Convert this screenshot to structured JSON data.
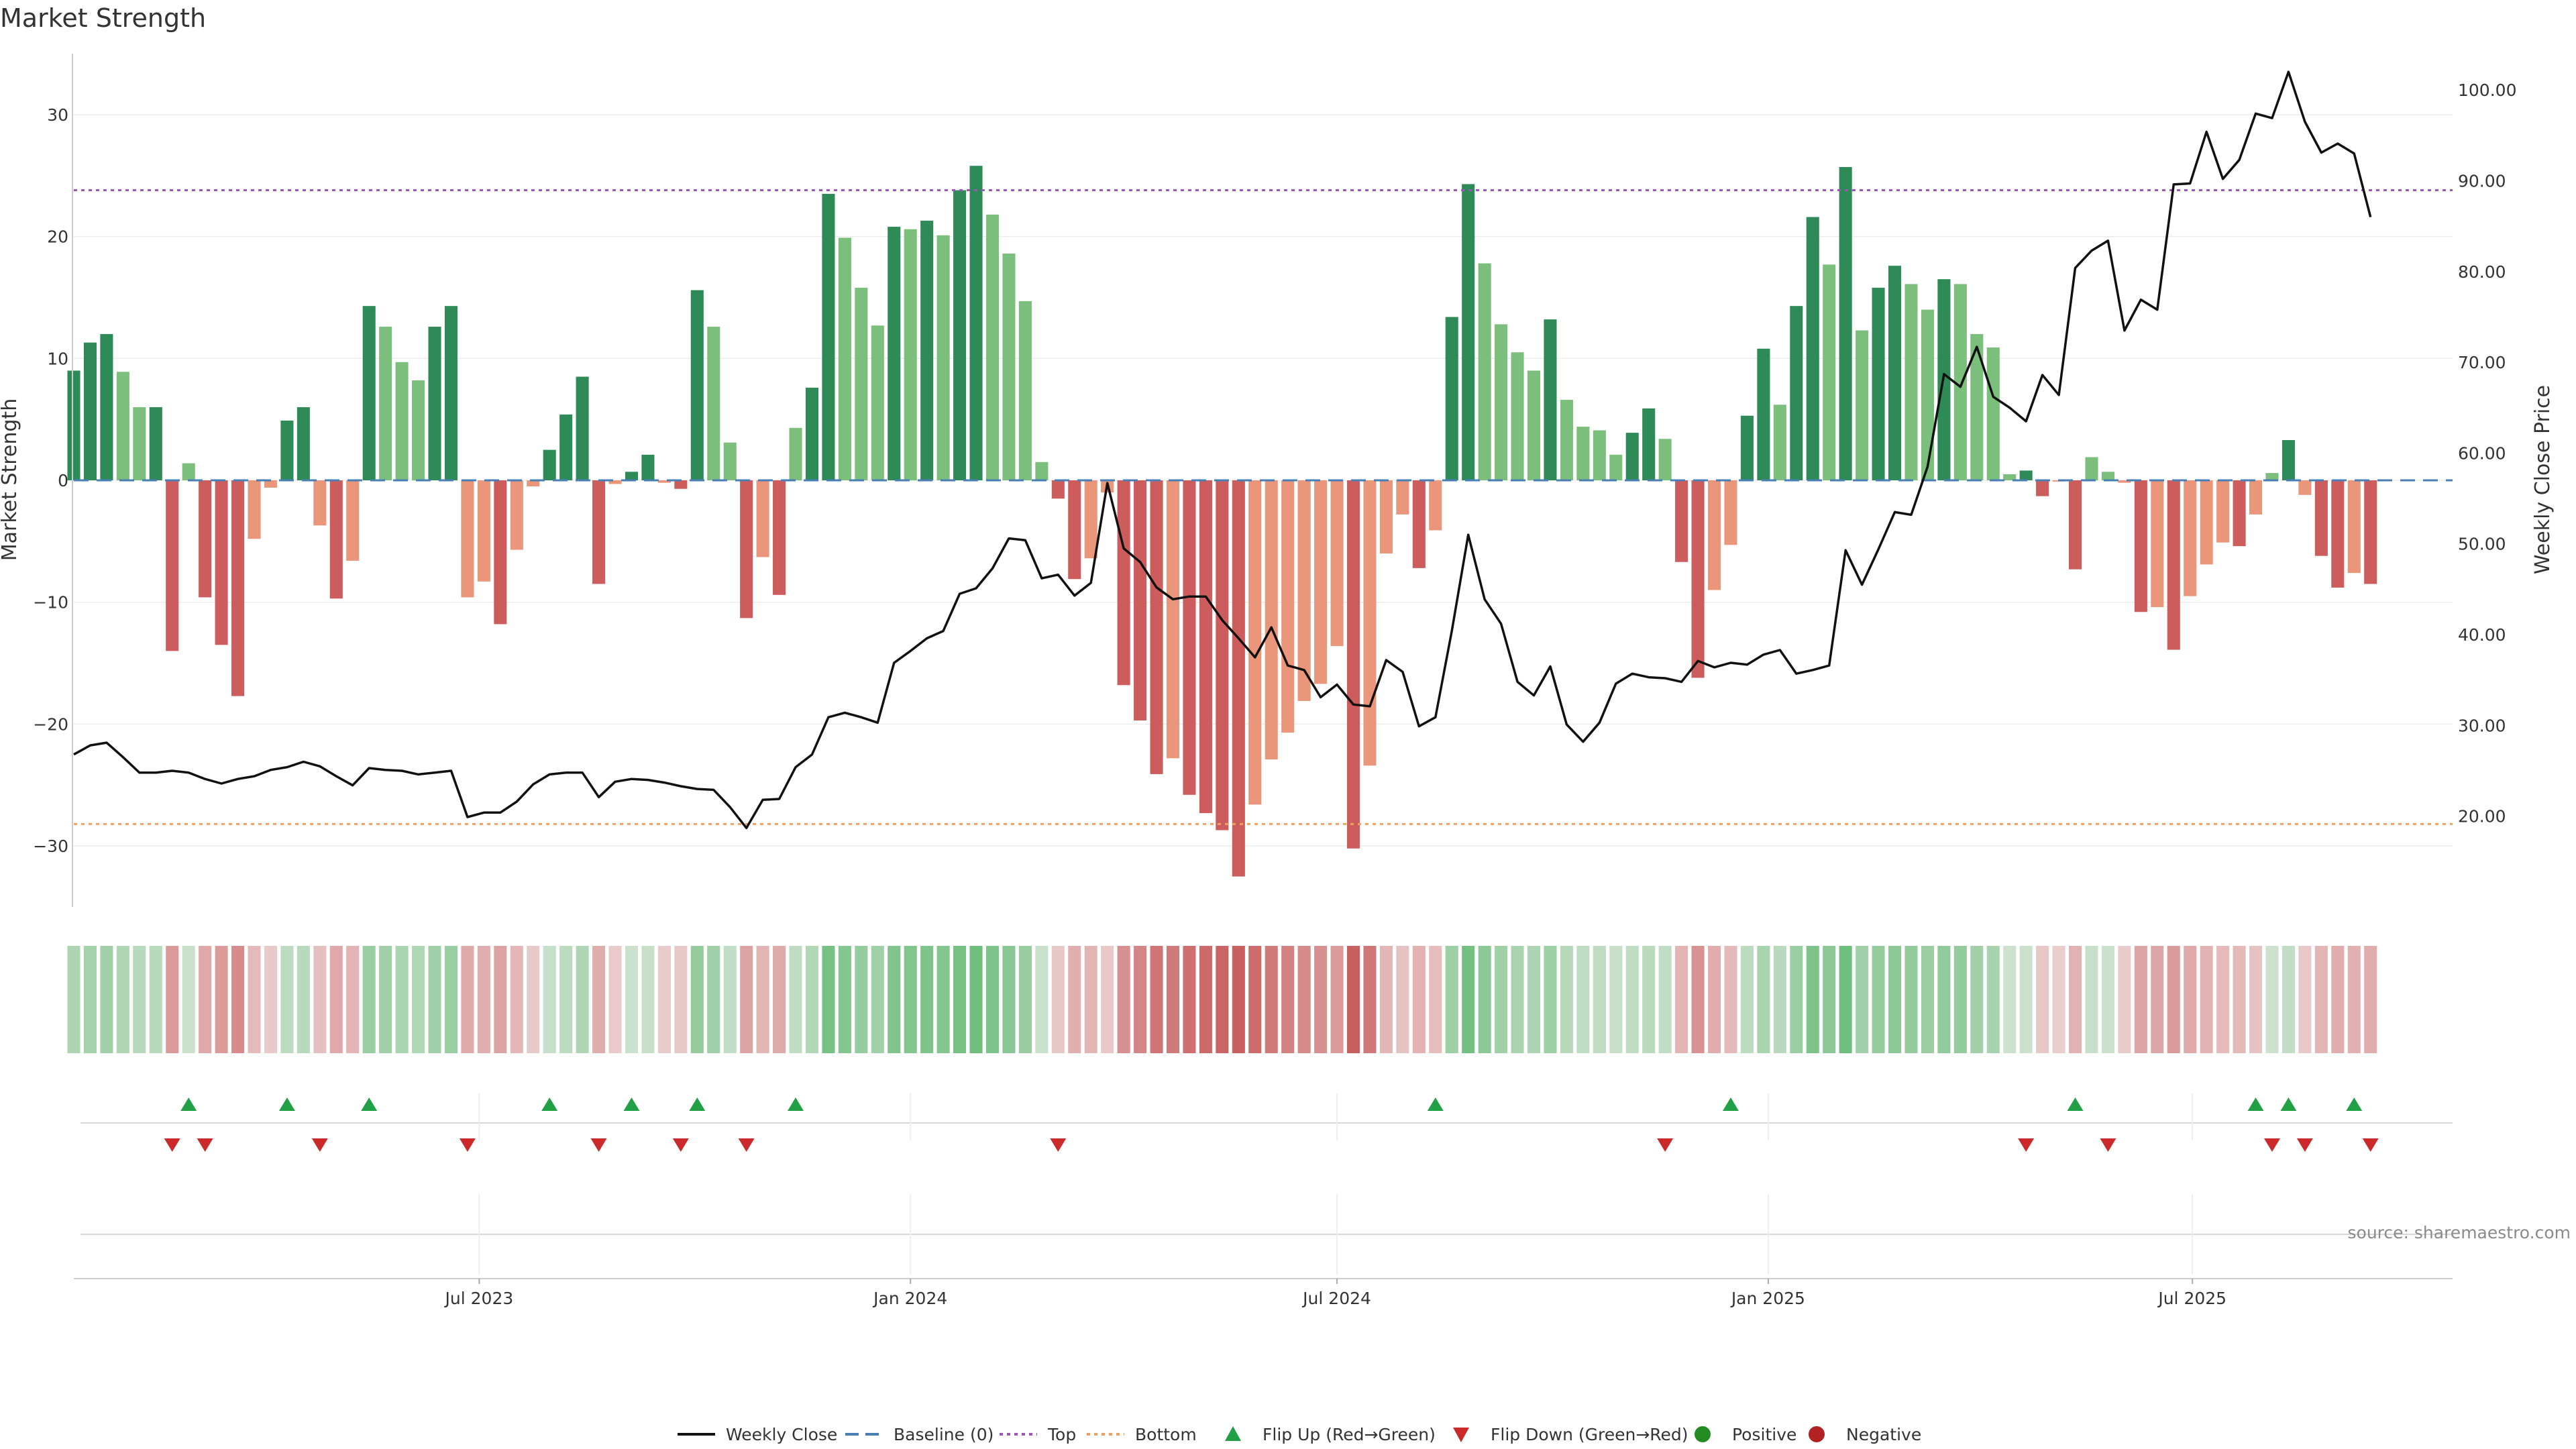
{
  "chart_data": {
    "type": "bar",
    "title": "Market Strength",
    "ylabel": "Market Strength",
    "y2label": "Weekly Close Price",
    "ylim": [
      -35,
      35
    ],
    "y2lim": [
      10,
      104
    ],
    "yticks": [
      "30",
      "20",
      "10",
      "0",
      "−10",
      "−20",
      "−30"
    ],
    "yticks_values": [
      30,
      20,
      10,
      0,
      -10,
      -20,
      -30
    ],
    "y2ticks": [
      "100.00",
      "90.00",
      "80.00",
      "70.00",
      "60.00",
      "50.00",
      "40.00",
      "30.00",
      "20.00"
    ],
    "y2ticks_values": [
      100,
      90,
      80,
      70,
      60,
      50,
      40,
      30,
      20
    ],
    "xlim": [
      "2023-01-09",
      "2025-10-20"
    ],
    "xticks": [
      {
        "label": "Jul 2023",
        "date": "2023-07-01"
      },
      {
        "label": "Jan 2024",
        "date": "2024-01-01"
      },
      {
        "label": "Jul 2024",
        "date": "2024-07-01"
      },
      {
        "label": "Jan 2025",
        "date": "2025-01-01"
      },
      {
        "label": "Jul 2025",
        "date": "2025-07-01"
      }
    ],
    "start_date": "2023-01-09",
    "top_line": 23.8,
    "bottom_line": -28.2,
    "strength": [
      9,
      11.3,
      12,
      8.9,
      6,
      6,
      -14,
      1.4,
      -9.6,
      -13.5,
      -17.7,
      -4.8,
      -0.6,
      4.9,
      6,
      -3.7,
      -9.7,
      -6.6,
      14.3,
      12.6,
      9.7,
      8.2,
      12.6,
      14.3,
      -9.6,
      -8.3,
      -11.8,
      -5.7,
      -0.5,
      2.5,
      5.4,
      8.5,
      -8.5,
      -0.3,
      0.7,
      2.1,
      -0.2,
      -0.7,
      15.6,
      12.6,
      3.1,
      -11.3,
      -6.3,
      -9.4,
      4.3,
      7.6,
      23.5,
      19.9,
      15.8,
      12.7,
      20.8,
      20.6,
      21.3,
      20.1,
      23.8,
      25.8,
      21.8,
      18.6,
      14.7,
      1.5,
      -1.5,
      -8.1,
      -6.4,
      -1,
      -16.8,
      -19.7,
      -24.1,
      -22.8,
      -25.8,
      -27.3,
      -28.7,
      -32.5,
      -26.6,
      -22.9,
      -20.7,
      -18.1,
      -16.7,
      -13.6,
      -30.2,
      -23.4,
      -6,
      -2.8,
      -7.2,
      -4.1,
      13.4,
      24.3,
      17.8,
      12.8,
      10.5,
      9,
      13.2,
      6.6,
      4.4,
      4.1,
      2.1,
      3.9,
      5.9,
      3.4,
      -6.7,
      -16.2,
      -9,
      -5.3,
      5.3,
      10.8,
      6.2,
      14.3,
      21.6,
      17.7,
      25.7,
      12.3,
      15.8,
      17.6,
      16.1,
      14,
      16.5,
      16.1,
      12,
      10.9,
      0.5,
      0.8,
      -1.3,
      -0.1,
      -7.3,
      1.9,
      0.7,
      -0.2,
      -10.8,
      -10.4,
      -13.9,
      -9.5,
      -6.9,
      -5.1,
      -5.4,
      -2.8,
      0.6,
      3.3,
      -1.2,
      -6.2,
      -8.8,
      -7.6,
      -8.5
    ],
    "close": [
      26.8,
      27.8,
      28.1,
      26.5,
      24.8,
      24.8,
      25,
      24.8,
      24.1,
      23.6,
      24.1,
      24.4,
      25.1,
      25.4,
      26,
      25.5,
      24.4,
      23.4,
      25.3,
      25.1,
      25,
      24.6,
      24.8,
      25,
      19.9,
      20.4,
      20.4,
      21.6,
      23.5,
      24.6,
      24.8,
      24.8,
      22.1,
      23.8,
      24.1,
      24,
      23.7,
      23.3,
      23,
      22.9,
      21,
      18.7,
      21.8,
      21.9,
      25.4,
      26.8,
      30.9,
      31.4,
      30.9,
      30.3,
      36.9,
      38.2,
      39.6,
      40.4,
      44.5,
      45.1,
      47.3,
      50.6,
      50.4,
      46.2,
      46.6,
      44.3,
      45.7,
      56.7,
      49.5,
      48,
      45.2,
      43.9,
      44.2,
      44.2,
      41.6,
      39.6,
      37.5,
      40.8,
      36.6,
      36.1,
      33.1,
      34.5,
      32.3,
      32.1,
      37.2,
      35.9,
      29.9,
      30.9,
      40.4,
      51,
      43.9,
      41.2,
      34.8,
      33.3,
      36.5,
      30.1,
      28.2,
      30.3,
      34.6,
      35.7,
      35.3,
      35.2,
      34.8,
      37.1,
      36.4,
      36.9,
      36.7,
      37.8,
      38.3,
      35.7,
      36.1,
      36.6,
      49.3,
      45.5,
      49.4,
      53.5,
      53.2,
      58.5,
      68.7,
      67.3,
      71.7,
      66.2,
      65,
      63.5,
      68.6,
      66.4,
      80.4,
      82.3,
      83.4,
      73.5,
      76.9,
      75.8,
      89.6,
      89.7,
      95.4,
      90.2,
      92.3,
      97.4,
      96.9,
      102,
      96.5,
      93.1,
      94.1,
      93,
      86
    ],
    "flip_up_index": [
      7,
      13,
      18,
      29,
      34,
      38,
      44,
      83,
      101,
      122,
      133,
      135,
      139
    ],
    "flip_down_index": [
      6,
      8,
      15,
      24,
      32,
      37,
      41,
      60,
      97,
      119,
      124,
      134,
      136,
      140
    ],
    "colors": {
      "strong_green": "#2e8b57",
      "light_green": "#7cbf7c",
      "strong_red": "#cd5c5c",
      "light_red": "#e9967a",
      "close_line": "#111111",
      "baseline": "#4a7fb5",
      "top": "#9b59b6",
      "bottom": "#f0a060",
      "flip_up": "#22a045",
      "flip_down": "#cc2a2a",
      "positive": "#228b22",
      "negative": "#b22222"
    },
    "legend": [
      {
        "label": "Weekly Close",
        "marker": "solid-line"
      },
      {
        "label": "Baseline (0)",
        "marker": "dashed-line"
      },
      {
        "label": "Top",
        "marker": "dotted-line"
      },
      {
        "label": "Bottom",
        "marker": "dotted-line"
      },
      {
        "label": "Flip Up (Red→Green)",
        "marker": "triangle-up"
      },
      {
        "label": "Flip Down (Green→Red)",
        "marker": "triangle-down"
      },
      {
        "label": "Positive",
        "marker": "dot"
      },
      {
        "label": "Negative",
        "marker": "dot"
      }
    ],
    "legend_position": "bottom",
    "source": "source: sharemaestro.com"
  }
}
